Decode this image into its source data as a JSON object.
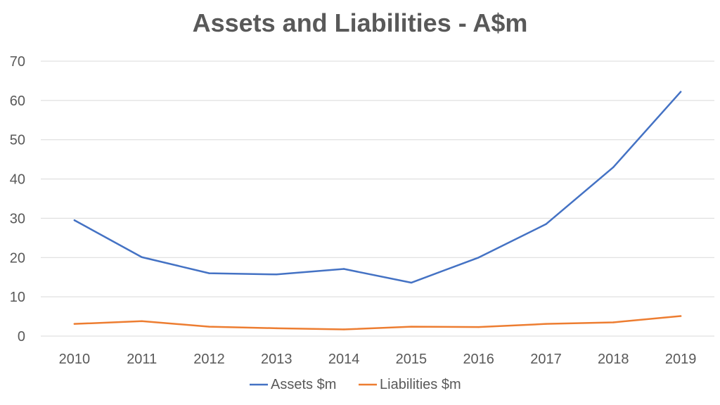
{
  "chart_data": {
    "type": "line",
    "title": "Assets and Liabilities - A$m",
    "xlabel": "",
    "ylabel": "",
    "categories": [
      "2010",
      "2011",
      "2012",
      "2013",
      "2014",
      "2015",
      "2016",
      "2017",
      "2018",
      "2019"
    ],
    "ylim": [
      0,
      70
    ],
    "yticks": [
      "0",
      "10",
      "20",
      "30",
      "40",
      "50",
      "60",
      "70"
    ],
    "grid": true,
    "legend_position": "bottom",
    "series": [
      {
        "name": "Assets $m",
        "color": "#4472c4",
        "values": [
          29.5,
          20.1,
          16.0,
          15.7,
          17.1,
          13.6,
          20.0,
          28.5,
          43.0,
          62.2
        ]
      },
      {
        "name": "Liabilities $m",
        "color": "#ed7d31",
        "values": [
          3.1,
          3.8,
          2.4,
          2.0,
          1.7,
          2.4,
          2.3,
          3.1,
          3.5,
          5.1
        ]
      }
    ]
  }
}
